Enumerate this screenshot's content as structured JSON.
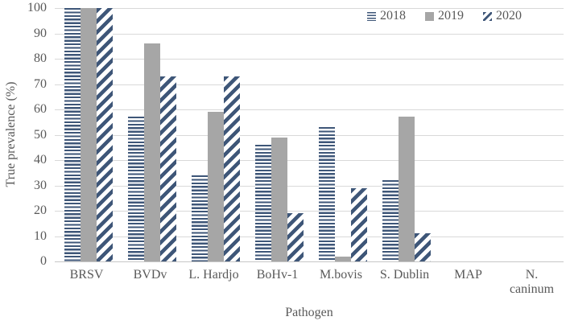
{
  "chart_data": {
    "type": "bar",
    "title": "",
    "xlabel": "Pathogen",
    "ylabel": "True prevalence (%)",
    "categories": [
      "BRSV",
      "BVDv",
      "L. Hardjo",
      "BoHv-1",
      "M.bovis",
      "S. Dublin",
      "MAP",
      "N. caninum"
    ],
    "series": [
      {
        "name": "2018",
        "fill": "horizontal-stripes",
        "values": [
          100,
          57,
          34,
          46,
          53,
          32,
          0,
          0
        ]
      },
      {
        "name": "2019",
        "fill": "solid",
        "values": [
          100,
          86,
          59,
          49,
          2,
          57,
          0,
          0
        ]
      },
      {
        "name": "2020",
        "fill": "diagonal-stripes",
        "values": [
          100,
          73,
          73,
          19,
          29,
          11,
          0,
          0
        ]
      }
    ],
    "ylim": [
      0,
      100
    ],
    "yticks": [
      0,
      10,
      20,
      30,
      40,
      50,
      60,
      70,
      80,
      90,
      100
    ],
    "grid": "horizontal",
    "legend_position": "top-right",
    "colors": {
      "navy": "#3e5678",
      "gray": "#a6a6a6",
      "gridline": "#d9d9d9",
      "axis_line": "#c6c6c6",
      "text": "#595959",
      "background": "#ffffff"
    }
  }
}
